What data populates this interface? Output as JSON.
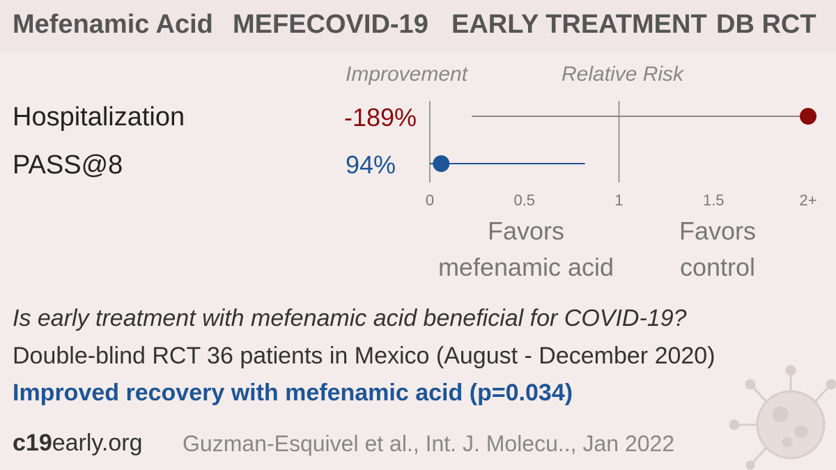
{
  "header": {
    "drug": "Mefenamic Acid",
    "trial": "MEFECOVID-19",
    "stage": "EARLY TREATMENT",
    "design": "DB RCT"
  },
  "colors": {
    "harm": "#8b0a0a",
    "benefit": "#1e5596",
    "axis": "#999999",
    "background": "#f4eceb"
  },
  "column_headers": {
    "improvement": "Improvement",
    "relative_risk": "Relative Risk"
  },
  "chart_data": {
    "type": "forest",
    "xlim": [
      0,
      2
    ],
    "x_ticks": [
      "0",
      "0.5",
      "1",
      "1.5",
      "2+"
    ],
    "x_tick_values": [
      0,
      0.5,
      1,
      1.5,
      2
    ],
    "reference_line": 1,
    "rows": [
      {
        "label": "Hospitalization",
        "improvement": "-189%",
        "rr": 2.89,
        "ci_low": 0.13,
        "ci_high": 2.0,
        "color": "#8b0a0a"
      },
      {
        "label": "PASS@8",
        "improvement": "94%",
        "rr": 0.06,
        "ci_low": 0.0,
        "ci_high": 0.82,
        "color": "#1e5596"
      }
    ],
    "favors_left": "Favors\nmefenamic acid",
    "favors_right": "Favors\ncontrol"
  },
  "summary": {
    "question": "Is early treatment with mefenamic acid beneficial for COVID-19?",
    "design": "Double-blind RCT 36 patients in Mexico (August - December 2020)",
    "result": "Improved recovery with mefenamic acid (p=0.034)"
  },
  "footer": {
    "site_bold": "c19",
    "site_rest": "early.org",
    "citation": "Guzman-Esquivel et al., Int. J. Molecu.., Jan 2022"
  }
}
